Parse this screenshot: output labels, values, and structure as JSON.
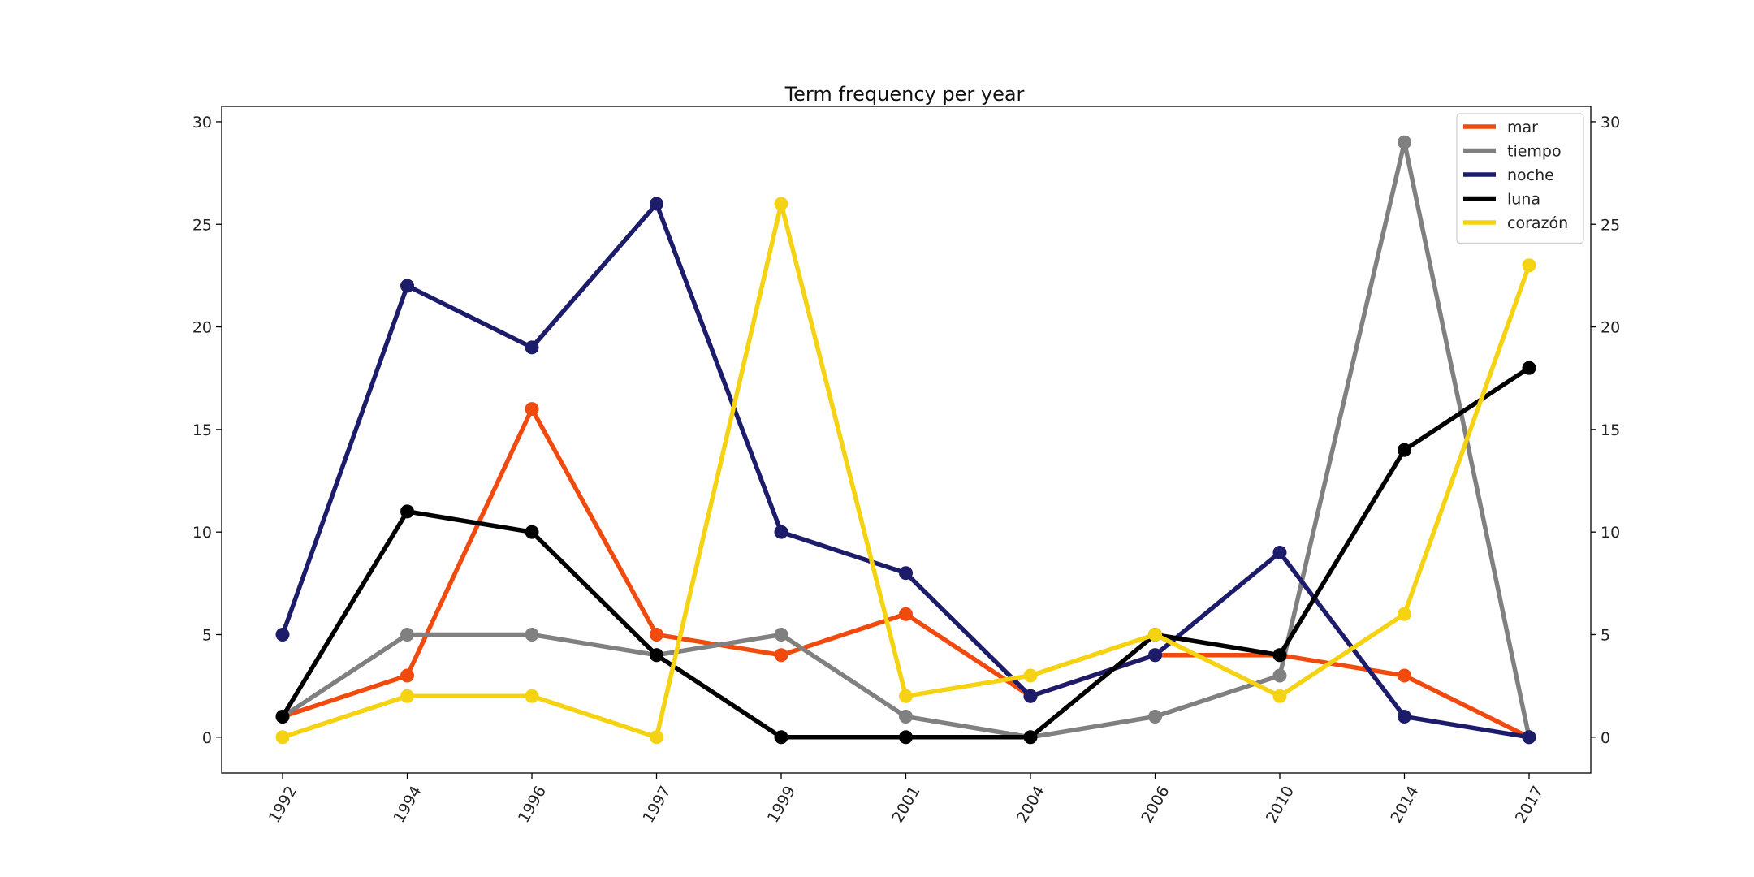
{
  "chart_data": {
    "type": "line",
    "title": "Term frequency per year",
    "xlabel": "",
    "ylabel": "",
    "categories": [
      "1992",
      "1994",
      "1996",
      "1997",
      "1999",
      "2001",
      "2004",
      "2006",
      "2010",
      "2014",
      "2017"
    ],
    "yticks": [
      0,
      5,
      10,
      15,
      20,
      25,
      30
    ],
    "ylim": [
      -1.75,
      30.75
    ],
    "grid": false,
    "legend_position": "top-right",
    "series": [
      {
        "name": "mar",
        "color": "#f04a0e",
        "values": [
          1,
          3,
          16,
          5,
          4,
          6,
          2,
          4,
          4,
          3,
          0
        ]
      },
      {
        "name": "tiempo",
        "color": "#808080",
        "values": [
          1,
          5,
          5,
          4,
          5,
          1,
          0,
          1,
          3,
          29,
          0
        ]
      },
      {
        "name": "noche",
        "color": "#1c1c6b",
        "values": [
          5,
          22,
          19,
          26,
          10,
          8,
          2,
          4,
          9,
          1,
          0
        ]
      },
      {
        "name": "luna",
        "color": "#000000",
        "values": [
          1,
          11,
          10,
          4,
          0,
          0,
          0,
          5,
          4,
          14,
          18
        ]
      },
      {
        "name": "corazón",
        "color": "#f5d312",
        "values": [
          0,
          2,
          2,
          0,
          26,
          2,
          3,
          5,
          2,
          6,
          23
        ]
      }
    ]
  }
}
